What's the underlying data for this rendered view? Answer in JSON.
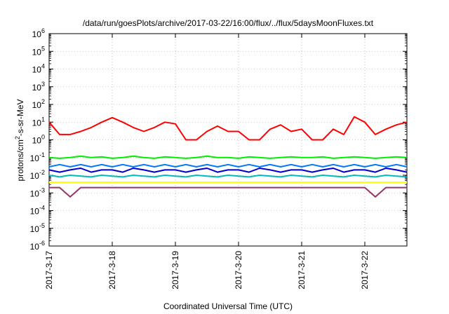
{
  "chart_data": {
    "type": "line",
    "title": "/data/run/goesPlots/archive/2017-03-22/16:00/flux/../flux/5daysMoonFluxes.txt",
    "xlabel": "Coordinated Universal Time (UTC)",
    "ylabel": {
      "pre": "protons/cm",
      "sup": "2",
      "post": "-s-sr-MeV"
    },
    "yscale": "log",
    "ylim": [
      1e-06,
      1000000.0
    ],
    "xlim": [
      "2017-03-17T00:00",
      "2017-03-22T16:00"
    ],
    "grid": true,
    "x_ticks": [
      "2017-3-17",
      "2017-3-18",
      "2017-3-19",
      "2017-3-20",
      "2017-3-21",
      "2017-3-22"
    ],
    "y_ticks": [
      {
        "base": "10",
        "exp": "-6"
      },
      {
        "base": "10",
        "exp": "-5"
      },
      {
        "base": "10",
        "exp": "-4"
      },
      {
        "base": "10",
        "exp": "-3"
      },
      {
        "base": "10",
        "exp": "-2"
      },
      {
        "base": "10",
        "exp": "-1"
      },
      {
        "base": "10",
        "exp": "0"
      },
      {
        "base": "10",
        "exp": "1"
      },
      {
        "base": "10",
        "exp": "2"
      },
      {
        "base": "10",
        "exp": "3"
      },
      {
        "base": "10",
        "exp": "4"
      },
      {
        "base": "10",
        "exp": "5"
      },
      {
        "base": "10",
        "exp": "6"
      }
    ],
    "x": [
      "2017-03-17T00:00",
      "2017-03-17T04:00",
      "2017-03-17T08:00",
      "2017-03-17T12:00",
      "2017-03-17T16:00",
      "2017-03-17T20:00",
      "2017-03-18T00:00",
      "2017-03-18T04:00",
      "2017-03-18T08:00",
      "2017-03-18T12:00",
      "2017-03-18T16:00",
      "2017-03-18T20:00",
      "2017-03-19T00:00",
      "2017-03-19T04:00",
      "2017-03-19T08:00",
      "2017-03-19T12:00",
      "2017-03-19T16:00",
      "2017-03-19T20:00",
      "2017-03-20T00:00",
      "2017-03-20T04:00",
      "2017-03-20T08:00",
      "2017-03-20T12:00",
      "2017-03-20T16:00",
      "2017-03-20T20:00",
      "2017-03-21T00:00",
      "2017-03-21T04:00",
      "2017-03-21T08:00",
      "2017-03-21T12:00",
      "2017-03-21T16:00",
      "2017-03-21T20:00",
      "2017-03-22T00:00",
      "2017-03-22T04:00",
      "2017-03-22T08:00",
      "2017-03-22T12:00",
      "2017-03-22T16:00"
    ],
    "series": [
      {
        "color": "#ff0000",
        "values": [
          10,
          2,
          2,
          3,
          5,
          10,
          18,
          10,
          5,
          3,
          5,
          10,
          8,
          1,
          1,
          3,
          6,
          3,
          3,
          1,
          1,
          4,
          7,
          3,
          4,
          1,
          1,
          4,
          2,
          20,
          10,
          2,
          4,
          7,
          10
        ]
      },
      {
        "color": "#00ee00",
        "values": [
          0.1,
          0.09,
          0.1,
          0.12,
          0.1,
          0.11,
          0.09,
          0.1,
          0.12,
          0.1,
          0.09,
          0.11,
          0.1,
          0.09,
          0.1,
          0.12,
          0.1,
          0.1,
          0.09,
          0.11,
          0.1,
          0.09,
          0.1,
          0.11,
          0.1,
          0.1,
          0.11,
          0.09,
          0.1,
          0.11,
          0.1,
          0.09,
          0.1,
          0.11,
          0.1
        ]
      },
      {
        "color": "#0077ff",
        "values": [
          0.03,
          0.04,
          0.03,
          0.04,
          0.03,
          0.04,
          0.03,
          0.04,
          0.03,
          0.04,
          0.03,
          0.04,
          0.03,
          0.04,
          0.03,
          0.04,
          0.03,
          0.04,
          0.03,
          0.04,
          0.03,
          0.04,
          0.03,
          0.04,
          0.03,
          0.04,
          0.03,
          0.04,
          0.03,
          0.04,
          0.03,
          0.04,
          0.03,
          0.04,
          0.03
        ]
      },
      {
        "color": "#0000cc",
        "values": [
          0.02,
          0.015,
          0.02,
          0.025,
          0.015,
          0.02,
          0.02,
          0.015,
          0.025,
          0.02,
          0.015,
          0.02,
          0.02,
          0.015,
          0.02,
          0.025,
          0.015,
          0.02,
          0.02,
          0.015,
          0.025,
          0.02,
          0.015,
          0.02,
          0.02,
          0.015,
          0.02,
          0.025,
          0.015,
          0.02,
          0.02,
          0.015,
          0.025,
          0.02,
          0.015
        ]
      },
      {
        "color": "#00bbbb",
        "values": [
          0.01,
          0.008,
          0.01,
          0.009,
          0.008,
          0.01,
          0.009,
          0.008,
          0.01,
          0.009,
          0.008,
          0.01,
          0.009,
          0.008,
          0.01,
          0.009,
          0.008,
          0.01,
          0.009,
          0.008,
          0.01,
          0.009,
          0.008,
          0.01,
          0.009,
          0.008,
          0.01,
          0.009,
          0.008,
          0.01,
          0.009,
          0.008,
          0.01,
          0.009,
          0.008
        ]
      },
      {
        "color": "#ffff00",
        "values": [
          0.004,
          0.004,
          0.004,
          0.004,
          0.004,
          0.004,
          0.004,
          0.004,
          0.004,
          0.004,
          0.004,
          0.004,
          0.004,
          0.004,
          0.004,
          0.004,
          0.004,
          0.004,
          0.004,
          0.004,
          0.004,
          0.004,
          0.004,
          0.004,
          0.004,
          0.004,
          0.004,
          0.004,
          0.004,
          0.004,
          0.004,
          0.004,
          0.004,
          0.004,
          0.004
        ]
      },
      {
        "color": "#993366",
        "values": [
          0.002,
          0.002,
          0.0006,
          0.002,
          0.002,
          0.002,
          0.002,
          0.002,
          0.002,
          0.002,
          0.002,
          0.002,
          0.002,
          0.002,
          0.002,
          0.002,
          0.002,
          0.002,
          0.002,
          0.002,
          0.002,
          0.002,
          0.002,
          0.002,
          0.002,
          0.002,
          0.002,
          0.002,
          0.002,
          0.002,
          0.002,
          0.0006,
          0.002,
          0.002,
          0.002
        ]
      }
    ]
  }
}
